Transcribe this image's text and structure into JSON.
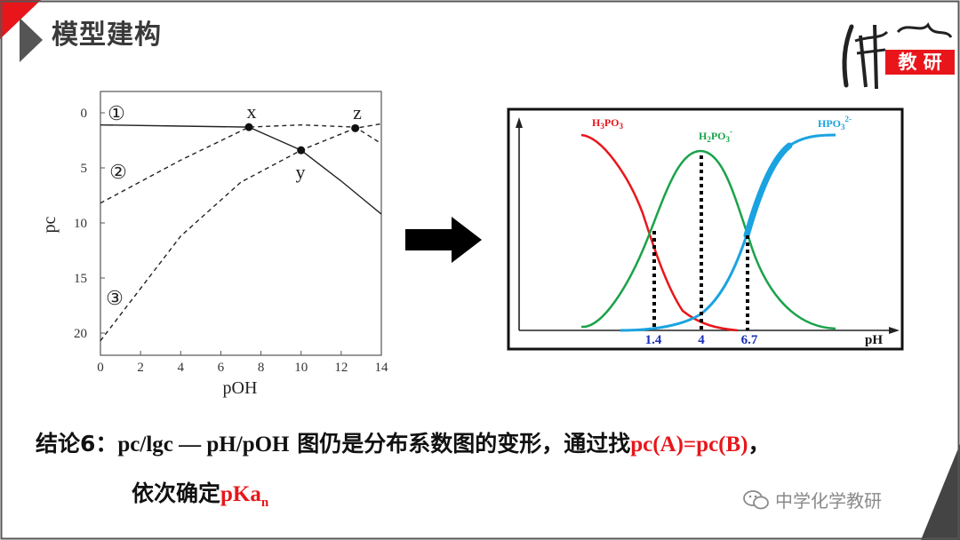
{
  "slide": {
    "title": "模型建构",
    "accent_color": "#e8161b",
    "corner_color": "#444444"
  },
  "logo": {
    "text": "教 研"
  },
  "left_chart": {
    "ylabel": "pc",
    "xlabel": "pOH",
    "x_ticks": [
      "0",
      "2",
      "4",
      "6",
      "8",
      "10",
      "12",
      "14"
    ],
    "y_ticks": [
      "0",
      "5",
      "10",
      "15",
      "20"
    ],
    "curve_labels": [
      "①",
      "②",
      "③"
    ],
    "point_labels": [
      "x",
      "y",
      "z"
    ]
  },
  "right_chart": {
    "x_tick_labels": [
      "1.4",
      "4",
      "6.7"
    ],
    "x_axis_label": "pH",
    "species": [
      {
        "base": "H",
        "sub1": "3",
        "mid": "PO",
        "sub2": "3",
        "sup": "",
        "color": "#e8161b"
      },
      {
        "base": "H",
        "sub1": "2",
        "mid": "PO",
        "sub2": "3",
        "sup": "-",
        "color": "#1aa34a"
      },
      {
        "base": "HPO",
        "sub1": "",
        "mid": "",
        "sub2": "3",
        "sup": "2-",
        "color": "#1aa3e0"
      }
    ]
  },
  "conclusion": {
    "prefix": "结论6：",
    "formula": "pc/lgc — pH/pOH",
    "middle": " 图仍是分布系数图的变形，通过找",
    "highlight": "pc(A)=pc(B)",
    "suffix": "，",
    "line2_prefix": "依次确定",
    "line2_highlight": "pKa",
    "line2_sub": "n"
  },
  "watermark": {
    "text": "中学化学教研",
    "icon": "wechat-icon"
  },
  "chart_data": [
    {
      "type": "line",
      "xlabel": "pOH",
      "ylabel": "pc",
      "xlim": [
        0,
        14
      ],
      "ylim": [
        20,
        0
      ],
      "series": [
        {
          "label": "①",
          "style": "solid",
          "x": [
            0,
            7.4,
            10,
            12,
            14
          ],
          "y": [
            1.1,
            1.3,
            3.4,
            6.2,
            9.2
          ]
        },
        {
          "label": "②",
          "style": "dashed",
          "x": [
            0,
            4,
            7.4,
            10,
            12.7,
            14
          ],
          "y": [
            8.2,
            4.3,
            1.3,
            1.1,
            1.3,
            2.8
          ]
        },
        {
          "label": "③",
          "style": "dashed",
          "x": [
            0,
            4,
            7,
            10,
            12.7,
            14
          ],
          "y": [
            20.7,
            11.2,
            6.3,
            3.4,
            1.4,
            1.0
          ]
        }
      ],
      "points": [
        {
          "label": "x",
          "x": 7.4,
          "y": 1.3
        },
        {
          "label": "y",
          "x": 10,
          "y": 3.4
        },
        {
          "label": "z",
          "x": 12.7,
          "y": 1.4
        }
      ]
    },
    {
      "type": "line",
      "xlabel": "pH",
      "x_ticks": [
        1.4,
        4,
        6.7
      ],
      "series": [
        {
          "name": "H3PO3",
          "color": "#e8161b"
        },
        {
          "name": "H2PO3-",
          "color": "#1aa34a"
        },
        {
          "name": "HPO32-",
          "color": "#1aa3e0"
        }
      ]
    }
  ]
}
